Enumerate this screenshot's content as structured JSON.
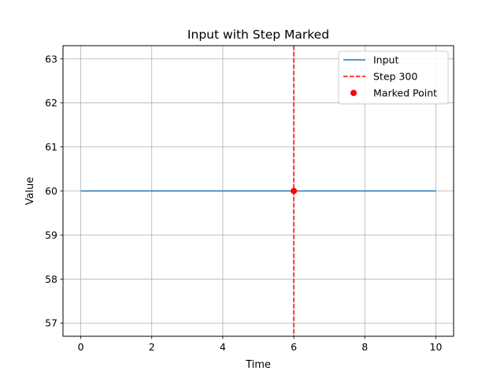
{
  "chart_data": {
    "type": "line",
    "title": "Input with Step Marked",
    "xlabel": "Time",
    "ylabel": "Value",
    "xlim": [
      -0.5,
      10.5
    ],
    "ylim": [
      56.7,
      63.3
    ],
    "xticks": [
      0,
      2,
      4,
      6,
      8,
      10
    ],
    "yticks": [
      57,
      58,
      59,
      60,
      61,
      62,
      63
    ],
    "grid": true,
    "legend_position": "top-right",
    "series": [
      {
        "name": "Input",
        "style": "line",
        "color": "#1f77b4",
        "x": [
          0,
          10
        ],
        "y": [
          60,
          60
        ]
      }
    ],
    "vlines": [
      {
        "name": "Step 300",
        "x": 6,
        "color": "#ff0000",
        "style": "dashed"
      }
    ],
    "points": [
      {
        "name": "Marked Point",
        "x": 6,
        "y": 60,
        "color": "#ff0000"
      }
    ]
  }
}
